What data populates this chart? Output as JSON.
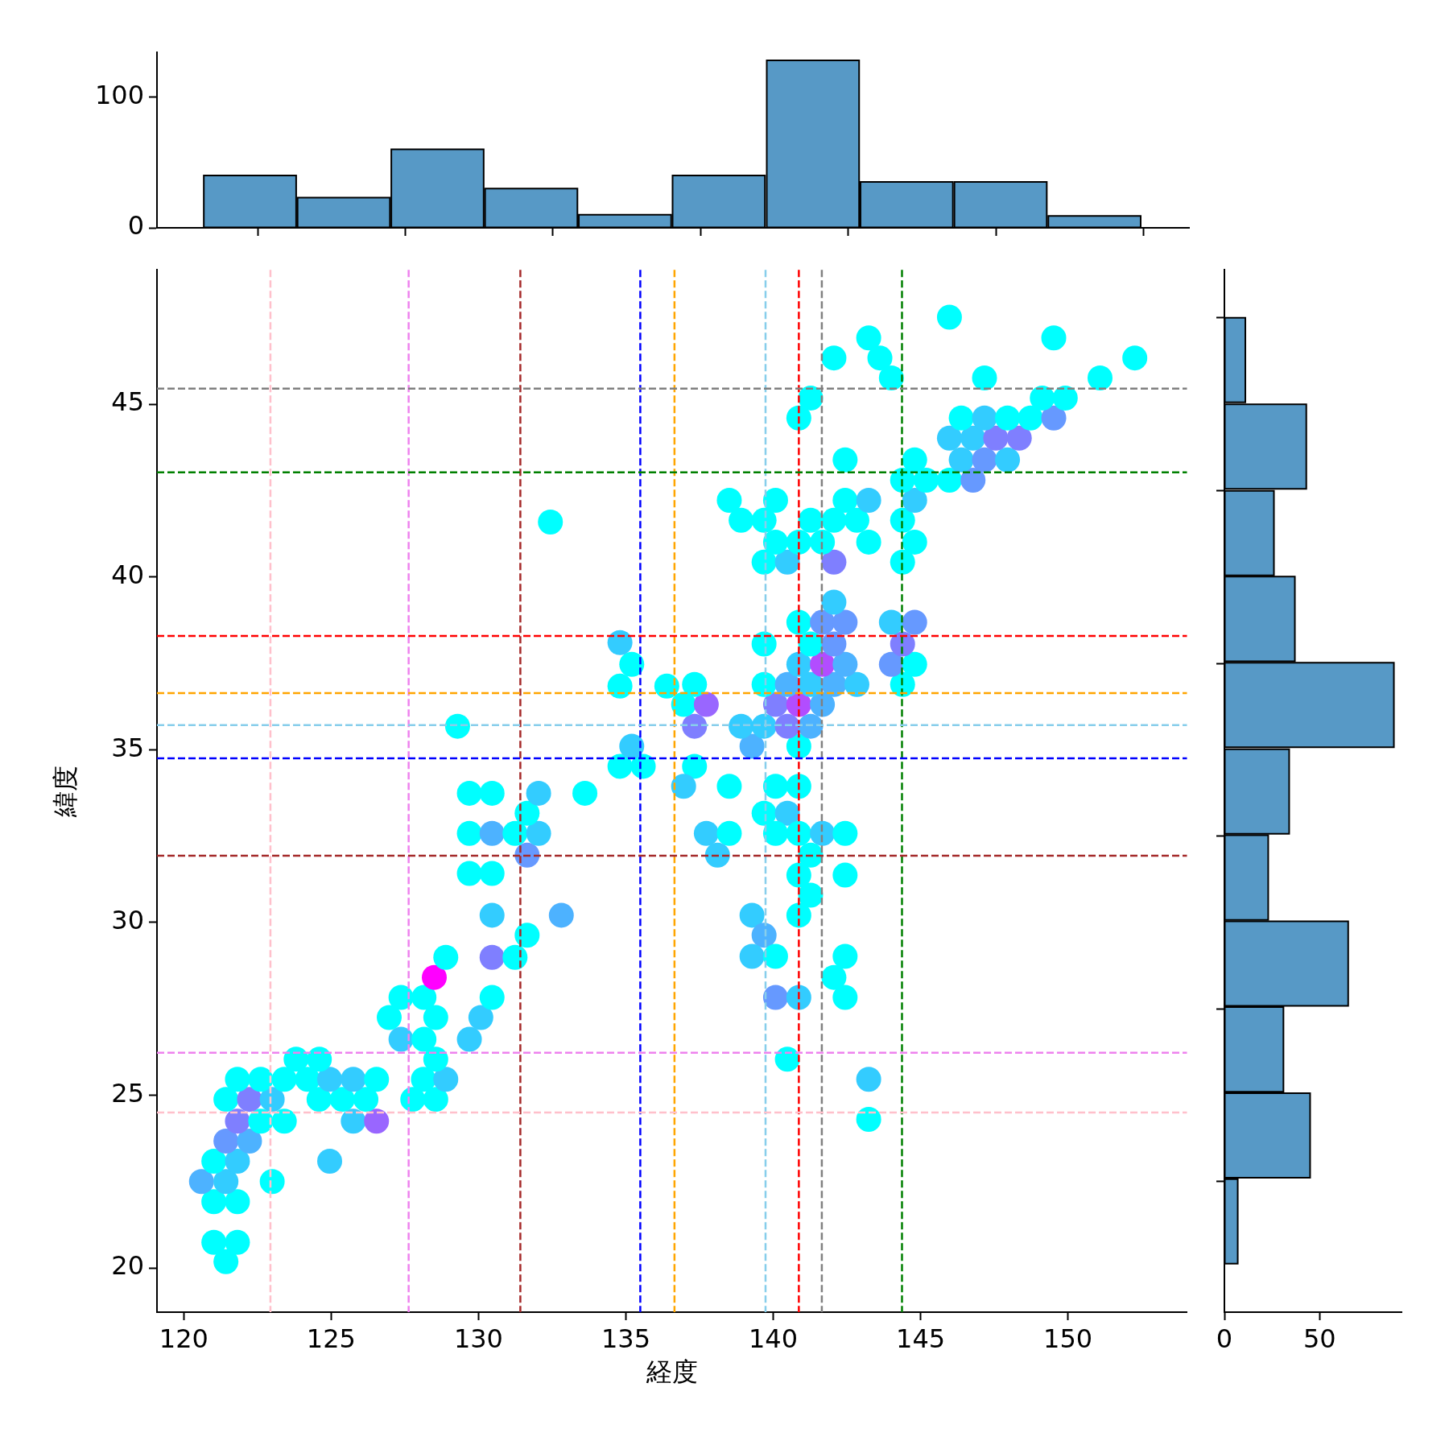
{
  "chart_data": [
    {
      "type": "histogram",
      "bins": [
        120.66,
        123.82,
        127.01,
        130.17,
        133.36,
        136.52,
        139.71,
        142.9,
        146.06,
        149.26,
        152.42
      ],
      "values": [
        40,
        23,
        60,
        30,
        10,
        40,
        128,
        35,
        35,
        9
      ],
      "color": "#5799c6",
      "xlim": [
        119.09,
        154.04
      ],
      "xticks": [
        {
          "value": 120,
          "label": null
        },
        {
          "value": 125,
          "label": null
        },
        {
          "value": 130,
          "label": null
        },
        {
          "value": 135,
          "label": null
        },
        {
          "value": 140,
          "label": null
        },
        {
          "value": 145,
          "label": null
        },
        {
          "value": 150,
          "label": null
        }
      ],
      "ylim": [
        0,
        134
      ],
      "yticks": [
        0,
        100
      ],
      "tick_labels": "y"
    },
    {
      "type": "scatter",
      "marker": "circle",
      "xlabel": "経度",
      "ylabel": "緯度",
      "xlim": [
        119.09,
        154.04
      ],
      "ylim": [
        18.72,
        48.89
      ],
      "xticks": [
        120,
        125,
        130,
        135,
        140,
        145,
        150
      ],
      "yticks": [
        20,
        25,
        30,
        35,
        40,
        45
      ],
      "x": [
        121.43,
        121.02,
        121.82,
        121.02,
        121.82,
        120.6,
        121.43,
        123.0,
        121.02,
        121.82,
        124.95,
        121.43,
        122.23,
        121.82,
        122.61,
        123.41,
        125.75,
        126.54,
        121.43,
        122.23,
        123.0,
        124.59,
        125.38,
        126.18,
        127.77,
        128.55,
        121.82,
        122.61,
        123.41,
        124.2,
        124.95,
        125.75,
        126.54,
        128.13,
        128.89,
        123.81,
        124.6,
        128.55,
        127.37,
        128.15,
        129.69,
        126.97,
        128.55,
        130.08,
        127.37,
        128.15,
        130.46,
        128.5,
        128.89,
        130.46,
        131.24,
        131.65,
        130.46,
        132.81,
        129.69,
        130.46,
        131.65,
        129.69,
        130.46,
        131.24,
        132.04,
        131.65,
        129.69,
        130.46,
        132.04,
        133.61,
        134.8,
        135.59,
        137.33,
        135.2,
        139.28,
        140.87,
        129.29,
        137.33,
        138.91,
        139.69,
        140.48,
        141.27,
        136.96,
        137.73,
        140.08,
        140.87,
        141.67,
        134.8,
        136.39,
        137.33,
        139.69,
        140.48,
        141.27,
        142.06,
        142.84,
        144.39,
        135.2,
        140.87,
        141.67,
        142.44,
        144.01,
        144.8,
        134.8,
        139.69,
        141.27,
        142.06,
        144.39,
        140.87,
        141.67,
        142.44,
        144.01,
        144.8,
        142.06,
        139.69,
        140.48,
        142.06,
        144.39,
        140.08,
        140.87,
        141.67,
        143.24,
        144.8,
        132.44,
        138.91,
        139.69,
        141.27,
        142.06,
        142.84,
        144.39,
        138.51,
        140.08,
        142.44,
        143.24,
        144.8,
        144.39,
        145.19,
        145.98,
        146.78,
        142.44,
        144.8,
        146.38,
        147.17,
        147.95,
        145.98,
        146.78,
        147.55,
        148.35,
        140.87,
        146.38,
        147.17,
        147.95,
        148.73,
        149.52,
        141.27,
        149.13,
        149.91,
        144.01,
        147.17,
        151.09,
        142.06,
        143.62,
        152.27,
        143.24,
        149.52,
        145.98,
        136.96,
        138.51,
        140.08,
        140.87,
        139.69,
        140.48,
        137.73,
        138.51,
        140.08,
        140.87,
        141.67,
        142.44,
        138.11,
        141.27,
        140.87,
        142.44,
        141.27,
        139.28,
        140.87,
        139.69,
        139.28,
        140.08,
        142.44,
        142.06,
        140.08,
        140.87,
        142.44,
        140.48,
        143.24,
        143.24
      ],
      "values": [
        20.18,
        20.74,
        20.74,
        21.92,
        21.92,
        22.5,
        22.5,
        22.5,
        23.09,
        23.09,
        23.09,
        23.67,
        23.67,
        24.25,
        24.25,
        24.25,
        24.25,
        24.25,
        24.88,
        24.88,
        24.88,
        24.88,
        24.88,
        24.88,
        24.88,
        24.88,
        25.46,
        25.46,
        25.46,
        25.46,
        25.46,
        25.46,
        25.46,
        25.46,
        25.46,
        26.04,
        26.04,
        26.04,
        26.62,
        26.62,
        26.62,
        27.25,
        27.25,
        27.25,
        27.83,
        27.83,
        27.83,
        28.41,
        28.99,
        28.99,
        28.99,
        29.63,
        30.21,
        30.21,
        31.42,
        31.42,
        31.95,
        32.58,
        32.58,
        32.58,
        32.58,
        33.16,
        33.74,
        33.74,
        33.74,
        33.74,
        34.52,
        34.52,
        34.52,
        35.1,
        35.1,
        35.1,
        35.68,
        35.68,
        35.68,
        35.68,
        35.68,
        35.68,
        36.31,
        36.31,
        36.31,
        36.31,
        36.31,
        36.84,
        36.84,
        36.89,
        36.89,
        36.89,
        36.89,
        36.89,
        36.89,
        36.89,
        37.47,
        37.47,
        37.47,
        37.47,
        37.47,
        37.47,
        38.1,
        38.06,
        38.06,
        38.06,
        38.06,
        38.69,
        38.69,
        38.69,
        38.69,
        38.69,
        39.27,
        40.43,
        40.43,
        40.43,
        40.43,
        41.01,
        41.01,
        41.01,
        41.01,
        41.01,
        41.59,
        41.64,
        41.64,
        41.64,
        41.64,
        41.64,
        41.64,
        42.22,
        42.22,
        42.22,
        42.22,
        42.22,
        42.8,
        42.8,
        42.8,
        42.8,
        43.39,
        43.39,
        43.39,
        43.39,
        43.39,
        44.02,
        44.02,
        44.02,
        44.02,
        44.6,
        44.6,
        44.6,
        44.6,
        44.6,
        44.6,
        45.18,
        45.18,
        45.18,
        45.76,
        45.76,
        45.76,
        46.34,
        46.34,
        46.34,
        46.92,
        46.92,
        47.52,
        33.94,
        33.94,
        33.94,
        33.94,
        33.16,
        33.16,
        32.58,
        32.58,
        32.58,
        32.58,
        32.58,
        32.58,
        31.95,
        31.95,
        31.37,
        31.37,
        30.79,
        30.21,
        30.21,
        29.63,
        29.02,
        29.02,
        29.02,
        28.41,
        27.83,
        27.83,
        27.83,
        26.04,
        25.46,
        24.3
      ],
      "colors": [
        "#00ffff",
        "#00ffff",
        "#00ffff",
        "#00ffff",
        "#00ffff",
        "#4db2ff",
        "#33ccff",
        "#00ffff",
        "#00ffff",
        "#33ccff",
        "#33ccff",
        "#6699ff",
        "#4db2ff",
        "#7f7fff",
        "#00ffff",
        "#00ffff",
        "#33ccff",
        "#9966ff",
        "#00ffff",
        "#7f7fff",
        "#33ccff",
        "#00ffff",
        "#00ffff",
        "#00ffff",
        "#00ffff",
        "#00ffff",
        "#00ffff",
        "#00ffff",
        "#00ffff",
        "#00ffff",
        "#33ccff",
        "#33ccff",
        "#00ffff",
        "#00ffff",
        "#33ccff",
        "#00ffff",
        "#00ffff",
        "#00ffff",
        "#33ccff",
        "#00ffff",
        "#33ccff",
        "#00ffff",
        "#00ffff",
        "#33ccff",
        "#00ffff",
        "#00ffff",
        "#00ffff",
        "#ff00ff",
        "#00ffff",
        "#7f7fff",
        "#00ffff",
        "#00ffff",
        "#33ccff",
        "#4db2ff",
        "#00ffff",
        "#00ffff",
        "#6699ff",
        "#00ffff",
        "#4db2ff",
        "#00ffff",
        "#33ccff",
        "#00ffff",
        "#00ffff",
        "#00ffff",
        "#33ccff",
        "#00ffff",
        "#00ffff",
        "#00ffff",
        "#00ffff",
        "#33ccff",
        "#4db2ff",
        "#00ffff",
        "#00ffff",
        "#7f7fff",
        "#33ccff",
        "#33ccff",
        "#7f7fff",
        "#4db2ff",
        "#00ffff",
        "#9966ff",
        "#7f7fff",
        "#b24dff",
        "#4db2ff",
        "#00ffff",
        "#00ffff",
        "#00ffff",
        "#00ffff",
        "#4db2ff",
        "#33ccff",
        "#4db2ff",
        "#33ccff",
        "#00ffff",
        "#00ffff",
        "#33ccff",
        "#b24dff",
        "#4db2ff",
        "#6699ff",
        "#00ffff",
        "#33ccff",
        "#00ffff",
        "#00ffff",
        "#6699ff",
        "#7f7fff",
        "#00ffff",
        "#6699ff",
        "#6699ff",
        "#33ccff",
        "#6699ff",
        "#33ccff",
        "#00ffff",
        "#33ccff",
        "#7f7fff",
        "#00ffff",
        "#00ffff",
        "#00ffff",
        "#00ffff",
        "#00ffff",
        "#00ffff",
        "#00ffff",
        "#00ffff",
        "#00ffff",
        "#00ffff",
        "#00ffff",
        "#00ffff",
        "#00ffff",
        "#00ffff",
        "#00ffff",
        "#00ffff",
        "#33ccff",
        "#33ccff",
        "#00ffff",
        "#00ffff",
        "#00ffff",
        "#6699ff",
        "#00ffff",
        "#00ffff",
        "#33ccff",
        "#6699ff",
        "#33ccff",
        "#33ccff",
        "#33ccff",
        "#7f7fff",
        "#7f7fff",
        "#00ffff",
        "#00ffff",
        "#33ccff",
        "#00ffff",
        "#00ffff",
        "#6699ff",
        "#00ffff",
        "#00ffff",
        "#00ffff",
        "#00ffff",
        "#00ffff",
        "#00ffff",
        "#00ffff",
        "#00ffff",
        "#00ffff",
        "#00ffff",
        "#00ffff",
        "#00ffff",
        "#33ccff",
        "#00ffff",
        "#00ffff",
        "#00ffff",
        "#00ffff",
        "#33ccff",
        "#33ccff",
        "#00ffff",
        "#00ffff",
        "#00ffff",
        "#33ccff",
        "#00ffff",
        "#33ccff",
        "#00ffff",
        "#00ffff",
        "#00ffff",
        "#00ffff",
        "#33ccff",
        "#00ffff",
        "#4db2ff",
        "#33ccff",
        "#00ffff",
        "#00ffff",
        "#00ffff",
        "#6699ff",
        "#33ccff",
        "#00ffff",
        "#00ffff",
        "#33ccff",
        "#00ffff"
      ],
      "ref_lines": [
        {
          "axis": "x",
          "value": 122.94,
          "color": "#ffc0cb",
          "line_style": "dashed"
        },
        {
          "axis": "x",
          "value": 127.63,
          "color": "#ee82ee",
          "line_style": "dashed"
        },
        {
          "axis": "x",
          "value": 131.42,
          "color": "#a52a2a",
          "line_style": "dashed"
        },
        {
          "axis": "x",
          "value": 135.49,
          "color": "#0000ff",
          "line_style": "dashed"
        },
        {
          "axis": "x",
          "value": 136.65,
          "color": "#ffa500",
          "line_style": "dashed"
        },
        {
          "axis": "x",
          "value": 139.74,
          "color": "#87ceeb",
          "line_style": "dashed"
        },
        {
          "axis": "x",
          "value": 140.87,
          "color": "#ff0000",
          "line_style": "dashed"
        },
        {
          "axis": "x",
          "value": 141.65,
          "color": "#808080",
          "line_style": "dashed"
        },
        {
          "axis": "x",
          "value": 144.37,
          "color": "#008000",
          "line_style": "dashed"
        },
        {
          "axis": "y",
          "value": 45.45,
          "color": "#808080",
          "line_style": "dashed"
        },
        {
          "axis": "y",
          "value": 43.03,
          "color": "#008000",
          "line_style": "dashed"
        },
        {
          "axis": "y",
          "value": 38.29,
          "color": "#ff0000",
          "line_style": "dashed"
        },
        {
          "axis": "y",
          "value": 36.64,
          "color": "#ffa500",
          "line_style": "dashed"
        },
        {
          "axis": "y",
          "value": 35.71,
          "color": "#87ceeb",
          "line_style": "dashed"
        },
        {
          "axis": "y",
          "value": 34.75,
          "color": "#0000ff",
          "line_style": "dashed"
        },
        {
          "axis": "y",
          "value": 31.93,
          "color": "#a52a2a",
          "line_style": "dashed"
        },
        {
          "axis": "y",
          "value": 26.23,
          "color": "#ee82ee",
          "line_style": "dashed"
        },
        {
          "axis": "y",
          "value": 24.5,
          "color": "#ffc0cb",
          "line_style": "dashed"
        }
      ]
    },
    {
      "type": "histogram",
      "orientation": "horizontal",
      "bins": [
        20.11,
        22.58,
        25.09,
        27.56,
        30.06,
        32.54,
        35.04,
        37.55,
        40.02,
        42.52,
        45.03,
        47.53
      ],
      "values": [
        7,
        45,
        31,
        65,
        23,
        34,
        89,
        37,
        26,
        43,
        11
      ],
      "color": "#5799c6",
      "xlim": [
        0,
        93
      ],
      "xticks": [
        0,
        50
      ],
      "ylim": [
        18.72,
        48.89
      ],
      "yticks": [
        {
          "value": 20,
          "label": null
        },
        {
          "value": 25,
          "label": null
        },
        {
          "value": 30,
          "label": null
        },
        {
          "value": 35,
          "label": null
        },
        {
          "value": 40,
          "label": null
        },
        {
          "value": 45,
          "label": null
        }
      ],
      "tick_labels": "x"
    }
  ]
}
